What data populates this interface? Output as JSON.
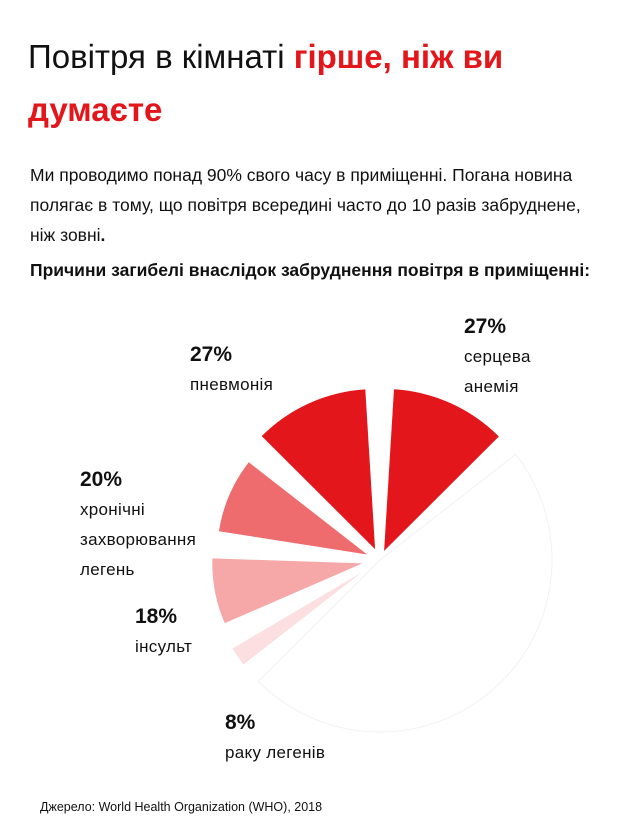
{
  "title": {
    "part1": "Повітря в кімнаті ",
    "highlight_line1": "гірше, ніж ви",
    "highlight_line2": "думаєте"
  },
  "intro": {
    "text": "Ми проводимо понад 90% свого часу в приміщенні. Погана новина полягає в тому, що повітря всередині часто до 10 разів забруднене, ніж зовні",
    "end": "."
  },
  "subhead": "Причини загибелі внаслідок забруднення повітря в приміщенні:",
  "chart_data": {
    "type": "pie",
    "slices": [
      {
        "label": "серцева\nанемія",
        "percent": "27%",
        "value": 27,
        "color": "#e3161b"
      },
      {
        "label": "пневмонія",
        "percent": "27%",
        "value": 27,
        "color": "#e3161b"
      },
      {
        "label": "хронічні\nзахворювання\nлегень",
        "percent": "20%",
        "value": 20,
        "color": "#ee6b6e"
      },
      {
        "label": "інсульт",
        "percent": "18%",
        "value": 18,
        "color": "#f6a7a8"
      },
      {
        "label": "раку легенів",
        "percent": "8%",
        "value": 8,
        "color": "#fcdfe0"
      }
    ],
    "remainder_color": "#ffffff"
  },
  "source": "Джерело: World Health Organization (WHO), 2018"
}
